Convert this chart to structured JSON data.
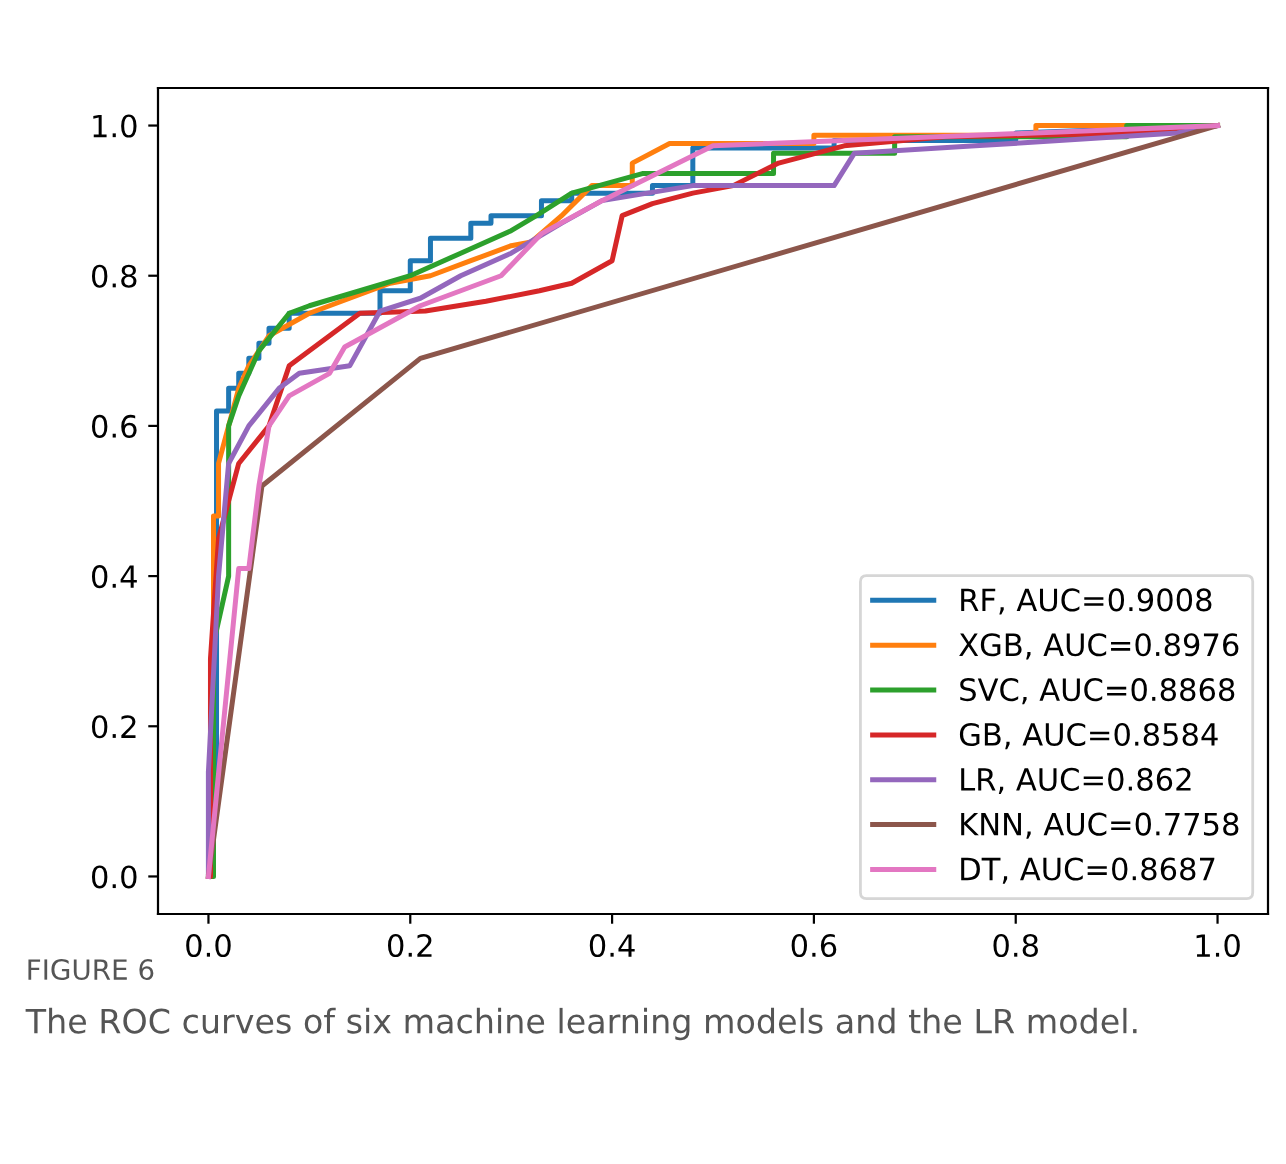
{
  "chart_data": {
    "type": "line",
    "xlim": [
      -0.05,
      1.05
    ],
    "ylim": [
      -0.05,
      1.05
    ],
    "xticks": [
      {
        "value": 0,
        "label": "0.0"
      },
      0.2,
      0.4,
      0.6,
      0.8,
      {
        "value": 1,
        "label": "1.0"
      }
    ],
    "yticks": [
      {
        "value": 0,
        "label": "0.0"
      },
      0.2,
      0.4,
      0.6,
      0.8,
      {
        "value": 1,
        "label": "1.0"
      }
    ],
    "grid": false,
    "legend": "bottom right",
    "line_style": "solid",
    "marker": "none",
    "annotations": [
      "FIGURE 6",
      "The ROC curves of six machine learning models and the LR model."
    ],
    "series": [
      {
        "name": "RF, AUC=0.9008",
        "color": "#1f77b4",
        "x": [
          0,
          0,
          0.008,
          0.008,
          0.02,
          0.02,
          0.03,
          0.03,
          0.04,
          0.04,
          0.05,
          0.05,
          0.06,
          0.06,
          0.08,
          0.08,
          0.17,
          0.17,
          0.2,
          0.2,
          0.22,
          0.22,
          0.26,
          0.26,
          0.28,
          0.28,
          0.33,
          0.33,
          0.36,
          0.36,
          0.44,
          0.44,
          0.48,
          0.48,
          0.62,
          0.62,
          0.8,
          0.8,
          1.0
        ],
        "values": [
          0,
          0.14,
          0.14,
          0.62,
          0.62,
          0.65,
          0.65,
          0.67,
          0.67,
          0.69,
          0.69,
          0.71,
          0.71,
          0.73,
          0.73,
          0.75,
          0.75,
          0.78,
          0.78,
          0.82,
          0.82,
          0.85,
          0.85,
          0.87,
          0.87,
          0.88,
          0.88,
          0.9,
          0.9,
          0.91,
          0.91,
          0.92,
          0.92,
          0.97,
          0.97,
          0.98,
          0.98,
          0.99,
          1.0
        ]
      },
      {
        "name": "XGB, AUC=0.8976",
        "color": "#ff7f0e",
        "x": [
          0,
          0.005,
          0.005,
          0.01,
          0.01,
          0.02,
          0.03,
          0.04,
          0.05,
          0.06,
          0.1,
          0.14,
          0.18,
          0.22,
          0.26,
          0.3,
          0.32,
          0.35,
          0.38,
          0.42,
          0.42,
          0.457,
          0.6,
          0.6,
          0.82,
          0.82,
          1.0
        ],
        "values": [
          0,
          0.3,
          0.48,
          0.48,
          0.55,
          0.6,
          0.65,
          0.68,
          0.7,
          0.72,
          0.75,
          0.77,
          0.79,
          0.8,
          0.82,
          0.84,
          0.845,
          0.88,
          0.92,
          0.92,
          0.95,
          0.976,
          0.976,
          0.987,
          0.987,
          1.0,
          1.0
        ]
      },
      {
        "name": "SVC, AUC=0.8868",
        "color": "#2ca02c",
        "x": [
          0,
          0.005,
          0.005,
          0.02,
          0.02,
          0.03,
          0.05,
          0.08,
          0.1,
          0.15,
          0.2,
          0.25,
          0.3,
          0.325,
          0.36,
          0.43,
          0.56,
          0.56,
          0.68,
          0.68,
          0.91,
          0.91,
          1.0
        ],
        "values": [
          0,
          0.0,
          0.31,
          0.4,
          0.6,
          0.64,
          0.7,
          0.75,
          0.76,
          0.78,
          0.8,
          0.83,
          0.86,
          0.88,
          0.91,
          0.936,
          0.936,
          0.963,
          0.963,
          0.985,
          0.985,
          1.0,
          1.0
        ]
      },
      {
        "name": "GB, AUC=0.8584",
        "color": "#d62728",
        "x": [
          0,
          0.002,
          0.002,
          0.01,
          0.03,
          0.06,
          0.08,
          0.12,
          0.15,
          0.215,
          0.275,
          0.328,
          0.36,
          0.4,
          0.41,
          0.44,
          0.48,
          0.52,
          0.52,
          0.565,
          0.63,
          0.73,
          0.93,
          1.0
        ],
        "values": [
          0,
          0.0,
          0.29,
          0.45,
          0.55,
          0.6,
          0.68,
          0.72,
          0.75,
          0.753,
          0.766,
          0.78,
          0.79,
          0.82,
          0.88,
          0.896,
          0.91,
          0.92,
          0.92,
          0.95,
          0.973,
          0.985,
          0.99,
          1.0
        ]
      },
      {
        "name": "LR, AUC=0.862",
        "color": "#9467bd",
        "x": [
          0,
          0,
          0.01,
          0.02,
          0.04,
          0.07,
          0.09,
          0.14,
          0.17,
          0.21,
          0.25,
          0.3,
          0.35,
          0.39,
          0.48,
          0.62,
          0.64,
          0.76,
          0.96,
          1.0
        ],
        "values": [
          0,
          0.14,
          0.4,
          0.55,
          0.6,
          0.65,
          0.67,
          0.68,
          0.753,
          0.77,
          0.8,
          0.83,
          0.87,
          0.9,
          0.92,
          0.92,
          0.963,
          0.973,
          0.99,
          1.0
        ]
      },
      {
        "name": "KNN, AUC=0.7758",
        "color": "#8c564b",
        "x": [
          0,
          0.053,
          0.21,
          1.0
        ],
        "values": [
          0,
          0.52,
          0.69,
          1.0
        ]
      },
      {
        "name": "DT, AUC=0.8687",
        "color": "#e377c2",
        "x": [
          0,
          0.03,
          0.04,
          0.05,
          0.06,
          0.08,
          0.12,
          0.135,
          0.21,
          0.29,
          0.33,
          0.39,
          0.5,
          1.0
        ],
        "values": [
          0,
          0.41,
          0.41,
          0.52,
          0.6,
          0.64,
          0.67,
          0.705,
          0.76,
          0.8,
          0.856,
          0.9,
          0.973,
          1.0
        ]
      }
    ]
  }
}
